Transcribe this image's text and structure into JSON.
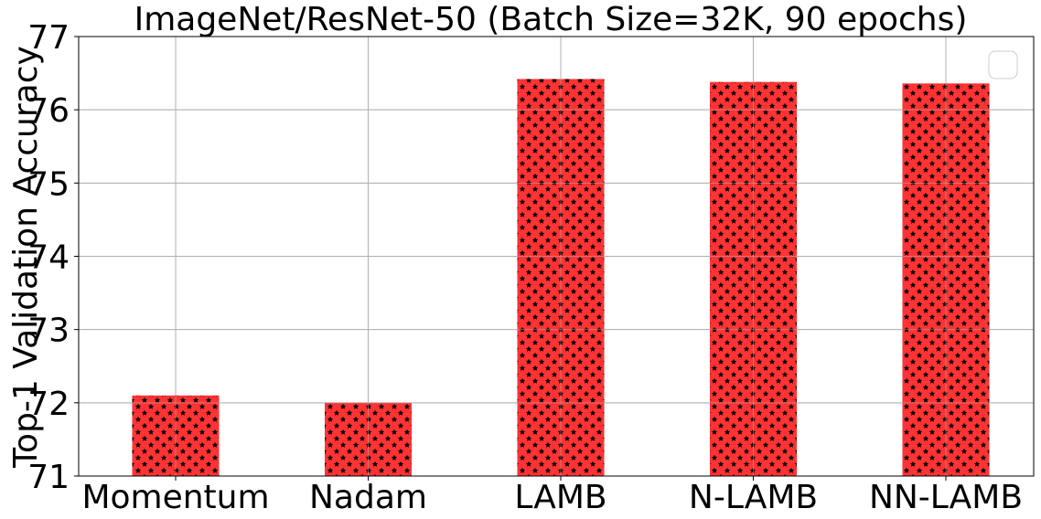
{
  "chart_data": {
    "type": "bar",
    "title": "ImageNet/ResNet-50 (Batch Size=32K, 90 epochs)",
    "xlabel": "",
    "ylabel": "Top-1 Validation Accuracy",
    "categories": [
      "Momentum",
      "Nadam",
      "LAMB",
      "N-LAMB",
      "NN-LAMB"
    ],
    "values": [
      72.1,
      72.0,
      76.42,
      76.38,
      76.36
    ],
    "ylim": [
      71,
      77
    ],
    "yticks": [
      "71",
      "72",
      "73",
      "74",
      "75",
      "76",
      "77"
    ],
    "grid": true,
    "legend": "top-right",
    "bar_color": "#ff3333",
    "hatch_color": "#000000",
    "hatch": "stars"
  }
}
